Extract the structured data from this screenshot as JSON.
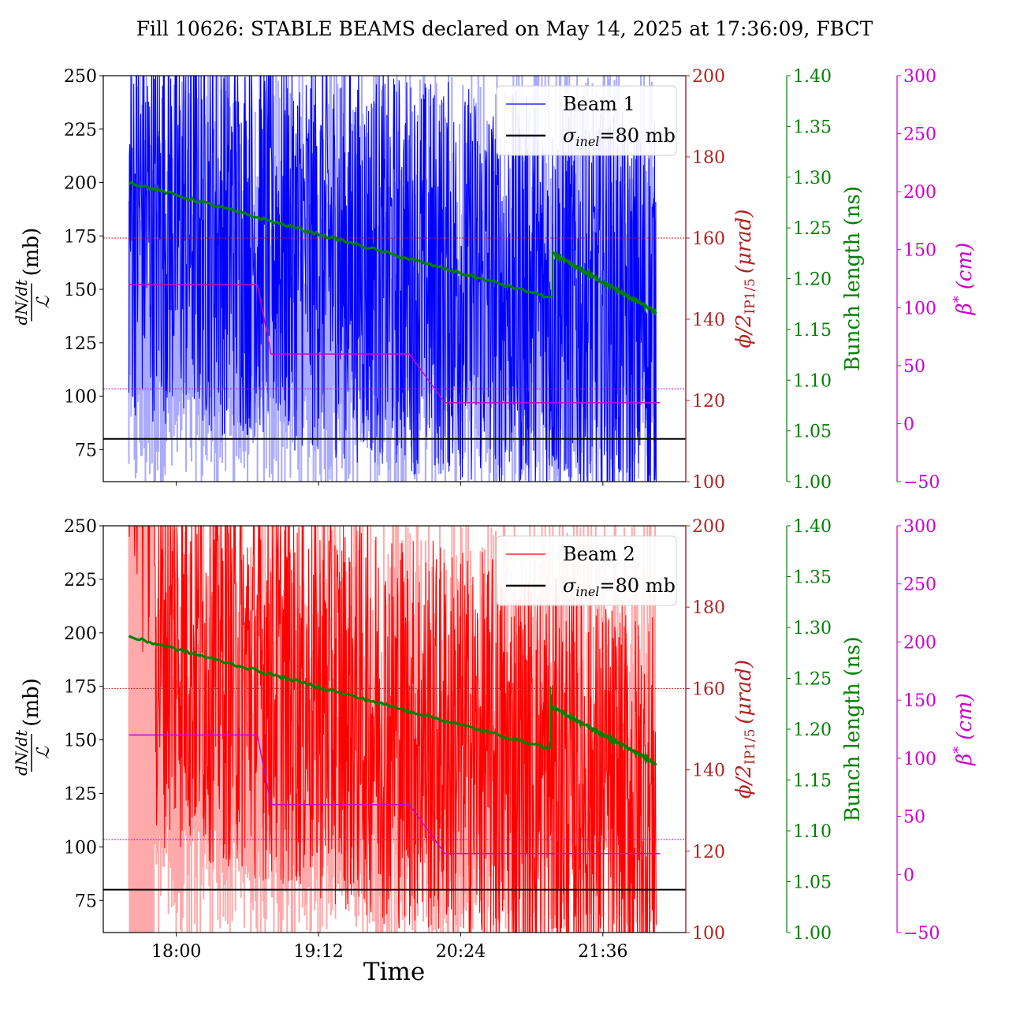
{
  "chart_data": {
    "type": "line",
    "title": "Fill 10626: STABLE BEAMS declared on May 14, 2025 at 17:36:09, FBCT",
    "xlabel": "Time",
    "x_range": [
      "17:23",
      "22:18"
    ],
    "x_ticks": [
      "18:00",
      "19:12",
      "20:24",
      "21:36"
    ],
    "x_tick_minutes": [
      1080,
      1152,
      1224,
      1296
    ],
    "x_range_minutes": [
      1043,
      1338
    ],
    "data_span_minutes": [
      1056,
      1323
    ],
    "colors": {
      "beam1": "#0000ff",
      "beam1_fill": "#aaaaff",
      "beam2": "#ff0000",
      "beam2_fill": "#ffaaaa",
      "sigma": "#000000",
      "crossing": "#b22222",
      "bunch": "#008000",
      "beta": "#cc00cc"
    },
    "axes": {
      "left": {
        "label_fraction_num": "dN/dt",
        "label_fraction_den": "ℒ",
        "label_unit": "(mb)",
        "ylim": [
          60,
          250
        ],
        "ticks": [
          75,
          100,
          125,
          150,
          175,
          200,
          225,
          250
        ]
      },
      "crossing": {
        "label_main": "ϕ/2",
        "label_sub": "IP1/5",
        "label_unit": "(μrad)",
        "ylim": [
          100,
          200
        ],
        "ticks": [
          100,
          120,
          140,
          160,
          180,
          200
        ]
      },
      "bunch": {
        "label": "Bunch length (ns)",
        "ylim": [
          1.0,
          1.4
        ],
        "ticks": [
          "1.00",
          "1.05",
          "1.10",
          "1.15",
          "1.20",
          "1.25",
          "1.30",
          "1.35",
          "1.40"
        ]
      },
      "beta": {
        "label_main": "β",
        "label_sup": "*",
        "label_unit": "(cm)",
        "ylim": [
          -50,
          300
        ],
        "ticks": [
          "−50",
          "0",
          "50",
          "100",
          "150",
          "200",
          "250",
          "300"
        ]
      }
    },
    "panels": [
      {
        "name": "Beam 1",
        "legend": [
          {
            "label": "Beam 1",
            "color": "#0000ff"
          },
          {
            "label_main": "σ",
            "label_sub": "inel",
            "label_rest": "=80 mb",
            "color": "#000000"
          }
        ],
        "legend_position": "upper-right",
        "sigma_inel_mb": 80,
        "crossing_angle_urad": 160,
        "beta_reference_cm": 30,
        "dndt_band_mb": {
          "low": 60,
          "high": 250,
          "mean_start": 185,
          "mean_end": 135
        },
        "bunch_length_ns": {
          "segments": [
            {
              "t": [
                1056,
                1270
              ],
              "v": [
                1.295,
                1.181
              ]
            },
            {
              "t": [
                1271,
                1323
              ],
              "v": [
                1.224,
                1.167
              ]
            }
          ]
        },
        "beta_star_cm": {
          "t": [
            1056,
            1121,
            1128,
            1198,
            1216,
            1325
          ],
          "v": [
            120,
            120,
            60,
            60,
            18,
            18
          ]
        }
      },
      {
        "name": "Beam 2",
        "legend": [
          {
            "label": "Beam 2",
            "color": "#ff0000"
          },
          {
            "label_main": "σ",
            "label_sub": "inel",
            "label_rest": "=80 mb",
            "color": "#000000"
          }
        ],
        "legend_position": "upper-right",
        "sigma_inel_mb": 80,
        "crossing_angle_urad": 160,
        "beta_reference_cm": 30,
        "dndt_band_mb": {
          "low": 60,
          "high": 250,
          "mean_start": 200,
          "mean_end": 115
        },
        "bunch_length_ns": {
          "segments": [
            {
              "t": [
                1056,
                1269
              ],
              "v": [
                1.291,
                1.181
              ]
            },
            {
              "t": [
                1270,
                1323
              ],
              "v": [
                1.222,
                1.166
              ]
            }
          ]
        },
        "beta_star_cm": {
          "t": [
            1056,
            1121,
            1128,
            1198,
            1216,
            1325
          ],
          "v": [
            120,
            120,
            60,
            60,
            18,
            18
          ]
        }
      }
    ]
  }
}
